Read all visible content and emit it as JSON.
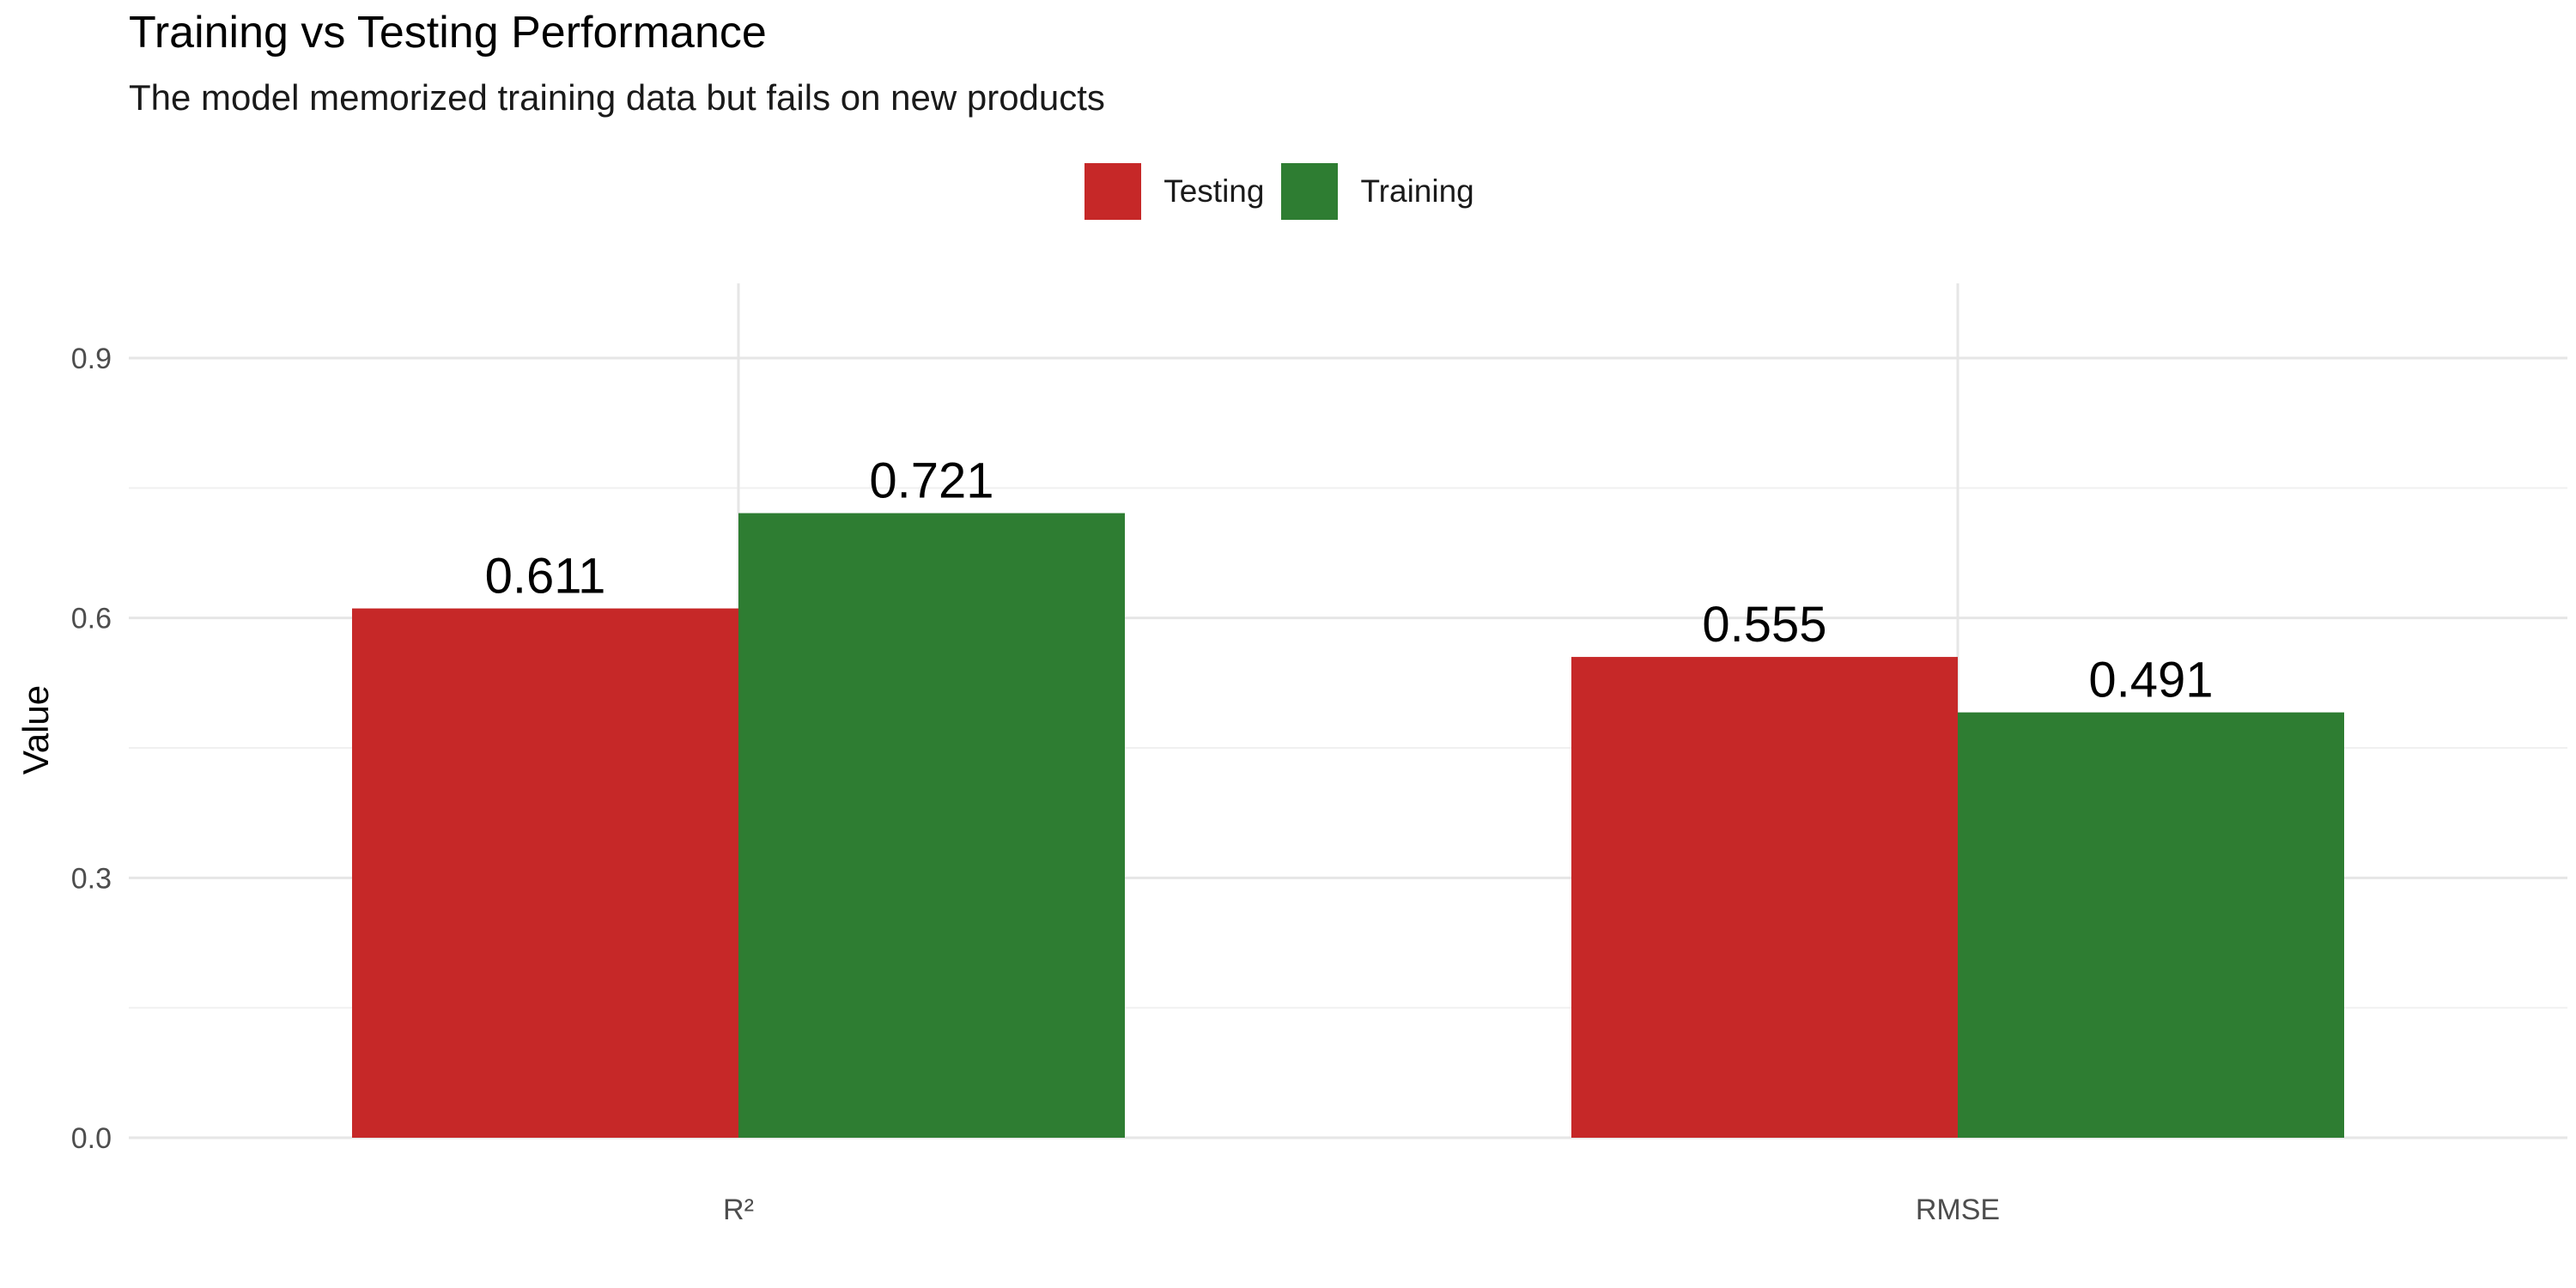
{
  "chart_data": {
    "type": "bar",
    "title": "Training vs Testing Performance",
    "subtitle": "The model memorized training data but fails on new products",
    "xlabel": "",
    "ylabel": "Value",
    "categories": [
      "R²",
      "RMSE"
    ],
    "series": [
      {
        "name": "Testing",
        "color": "#c62828",
        "values": [
          0.611,
          0.555
        ],
        "labels": [
          "0.611",
          "0.555"
        ]
      },
      {
        "name": "Training",
        "color": "#2e7d32",
        "values": [
          0.721,
          0.491
        ],
        "labels": [
          "0.721",
          "0.491"
        ]
      }
    ],
    "y_ticks": [
      0.0,
      0.3,
      0.6,
      0.9
    ],
    "y_tick_labels": [
      "0.0",
      "0.3",
      "0.6",
      "0.9"
    ],
    "ylim": [
      0,
      1.1
    ],
    "grid": true,
    "legend_position": "top"
  }
}
